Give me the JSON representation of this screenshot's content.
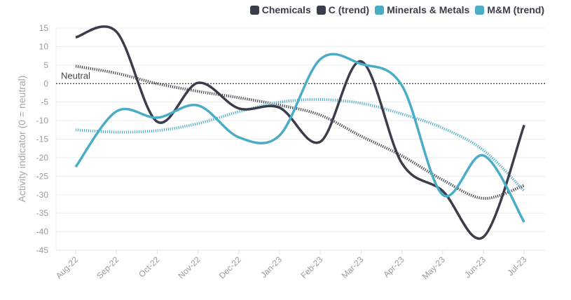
{
  "chart_data": {
    "type": "line",
    "title": "",
    "xlabel": "",
    "ylabel": "Activity indicator (0 = neutral)",
    "ylim": [
      -45,
      15
    ],
    "yticks": [
      15,
      10,
      5,
      0,
      -5,
      -10,
      -15,
      -20,
      -25,
      -30,
      -35,
      -40,
      -45
    ],
    "grid": true,
    "legend_position": "top-right",
    "categories": [
      "Aug-22",
      "Sep-22",
      "Oct-22",
      "Nov-22",
      "Dec-22",
      "Jan-23",
      "Feb-23",
      "Mar-23",
      "Apr-23",
      "May-23",
      "Jun-23",
      "Jul-23"
    ],
    "reference_line": {
      "value": 0,
      "label": "Neutral",
      "style": "dotted"
    },
    "series": [
      {
        "name": "Chemicals",
        "color": "#3a3d4a",
        "style": "solid",
        "values": [
          12.5,
          14,
          -10.3,
          0.2,
          -6.7,
          -6.5,
          -15.7,
          6,
          -21.5,
          -29,
          -41.4,
          -11.2
        ]
      },
      {
        "name": "C (trend)",
        "color": "#3a3d4a",
        "style": "dotted",
        "values": [
          4.7,
          2.8,
          0,
          -2.1,
          -3.8,
          -5.8,
          -8.5,
          -14.2,
          -19.5,
          -26,
          -31,
          -27.5
        ]
      },
      {
        "name": "Minerals & Metals",
        "color": "#4bacc6",
        "style": "solid",
        "values": [
          -22.5,
          -7.5,
          -9.2,
          -5.9,
          -14.5,
          -14,
          6.6,
          5.3,
          -0.5,
          -30,
          -19.4,
          -37.4
        ]
      },
      {
        "name": "M&M (trend)",
        "color": "#4bacc6",
        "style": "dotted",
        "values": [
          -12.5,
          -13.1,
          -12.7,
          -10.8,
          -7.6,
          -5,
          -4.3,
          -5.3,
          -8.2,
          -12,
          -18,
          -29
        ]
      }
    ]
  }
}
